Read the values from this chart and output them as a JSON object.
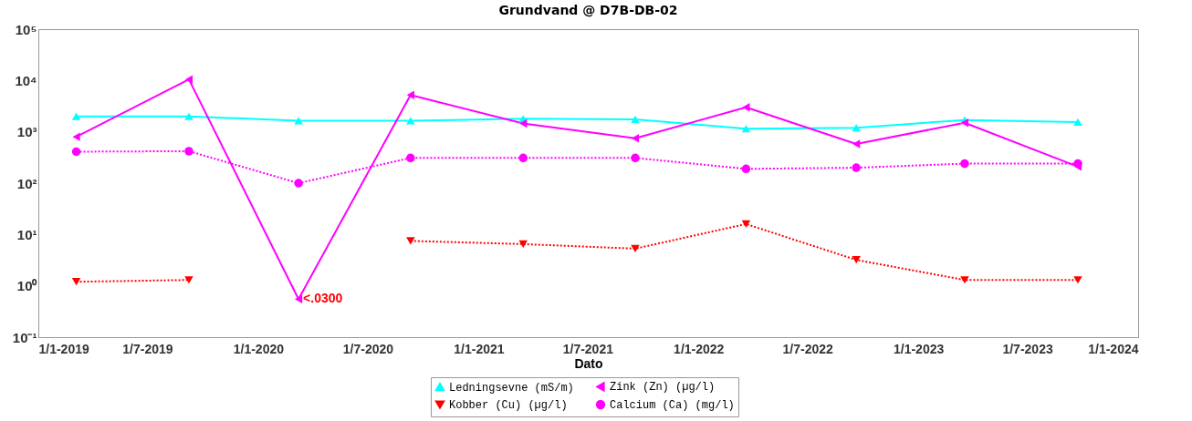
{
  "chart_data": {
    "type": "line",
    "title": "Grundvand @ D7B-DB-02",
    "xlabel": "Dato",
    "x": [
      "2019-03-05",
      "2019-09-08",
      "2020-03-08",
      "2020-09-10",
      "2021-03-16",
      "2021-09-18",
      "2022-03-21",
      "2022-09-20",
      "2023-03-19",
      "2023-09-23"
    ],
    "series": [
      {
        "name": "Ledningsevne (mS/m)",
        "color": "#00ffff",
        "marker": "triangle",
        "line_style": "solid",
        "values": [
          2000,
          2000,
          1650,
          1650,
          1800,
          1750,
          1150,
          1200,
          1700,
          1550
        ]
      },
      {
        "name": "Zink (Zn) (µg/l)",
        "color": "#ff00ff",
        "marker": "triangle-left",
        "line_style": "solid",
        "values": [
          800,
          10500,
          0.55,
          5200,
          1450,
          750,
          3000,
          580,
          1500,
          210
        ]
      },
      {
        "name": "Kobber (Cu) (µg/l)",
        "color": "#ff0000",
        "marker": "triangle-down",
        "line_style": "dotted",
        "values": [
          1.2,
          1.3,
          null,
          7.5,
          6.5,
          5.3,
          16,
          3.2,
          1.3,
          1.3
        ]
      },
      {
        "name": "Calcium (Ca) (mg/l)",
        "color": "#ff00ff",
        "marker": "circle",
        "line_style": "dotted",
        "values": [
          410,
          420,
          100,
          310,
          310,
          310,
          190,
          200,
          240,
          240
        ]
      }
    ],
    "annotations": [
      {
        "text": "<.0300",
        "x": "2020-03-08",
        "y": 0.55
      }
    ],
    "log": "y",
    "ylim": [
      0.1,
      100000
    ],
    "yticks": [
      {
        "value": 0.1,
        "label": "10⁻¹"
      },
      {
        "value": 1,
        "label": "10⁰"
      },
      {
        "value": 10,
        "label": "10¹"
      },
      {
        "value": 100,
        "label": "10²"
      },
      {
        "value": 1000,
        "label": "10³"
      },
      {
        "value": 10000,
        "label": "10⁴"
      },
      {
        "value": 100000,
        "label": "10⁵"
      }
    ],
    "xlim": [
      "2019-01-01",
      "2024-01-01"
    ],
    "xticks": [
      {
        "value": "2019-01-01",
        "label": "1/1-2019"
      },
      {
        "value": "2019-07-01",
        "label": "1/7-2019"
      },
      {
        "value": "2020-01-01",
        "label": "1/1-2020"
      },
      {
        "value": "2020-07-01",
        "label": "1/7-2020"
      },
      {
        "value": "2021-01-01",
        "label": "1/1-2021"
      },
      {
        "value": "2021-07-01",
        "label": "1/7-2021"
      },
      {
        "value": "2022-01-01",
        "label": "1/1-2022"
      },
      {
        "value": "2022-07-01",
        "label": "1/7-2022"
      },
      {
        "value": "2023-01-01",
        "label": "1/1-2023"
      },
      {
        "value": "2023-07-01",
        "label": "1/7-2023"
      },
      {
        "value": "2024-01-01",
        "label": "1/1-2024"
      }
    ],
    "grid": false,
    "legend": "bottom"
  }
}
